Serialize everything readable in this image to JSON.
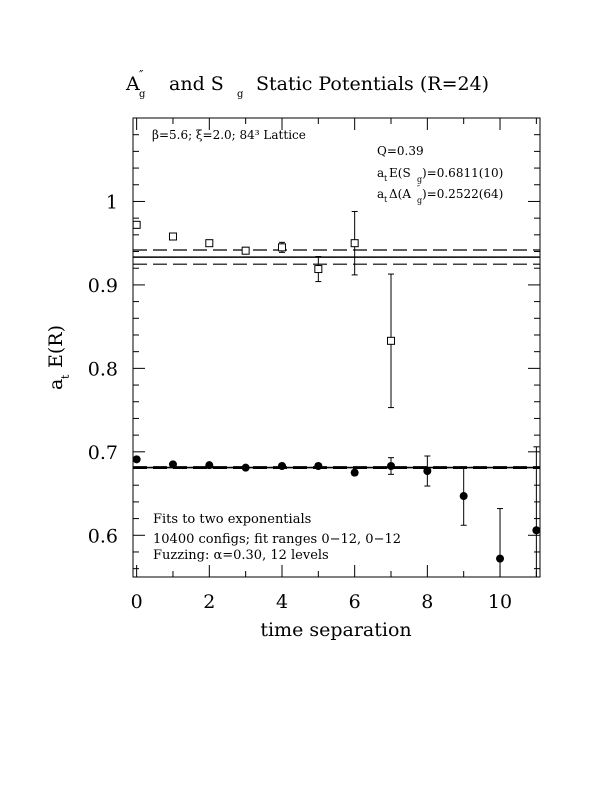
{
  "chart_data": {
    "type": "scatter",
    "title": {
      "main": "A",
      "main_sup": "″",
      "main_sub": "g",
      "middle": "and S",
      "middle_sub": "g",
      "rest": "Static Potentials (R=24)"
    },
    "xlabel": "time separation",
    "ylabel": {
      "base": "a",
      "sub": "t",
      "rest": "E(R)"
    },
    "xlim": [
      -0.1,
      11.1
    ],
    "ylim": [
      0.55,
      1.1
    ],
    "xticks": [
      0,
      2,
      4,
      6,
      8,
      10
    ],
    "yticks": [
      0.6,
      0.7,
      0.8,
      0.9,
      1
    ],
    "ytick_labels": [
      "0.6",
      "0.7",
      "0.8",
      "0.9",
      "1"
    ],
    "lattice_note": "β=5.6; ξ=2.0; 84³ Lattice",
    "fit_stats": {
      "q": "Q=0.39",
      "es": {
        "a": "a",
        "t": "t",
        "mid": "E(S",
        "sub": "g",
        "end": ")=0.6811(10)"
      },
      "da": {
        "a": "a",
        "t": "t",
        "mid": "Δ(A",
        "sup": "″",
        "sub": "g",
        "end": " )=0.2522(64)"
      }
    },
    "fit_note": [
      "Fits to two exponentials",
      "10400 configs; fit ranges 0−12, 0−12",
      "Fuzzing: α=0.30, 12 levels"
    ],
    "series": [
      {
        "name": "S_g",
        "marker": "filled-circle",
        "x": [
          0,
          1,
          2,
          3,
          4,
          5,
          6,
          7,
          8,
          9,
          10,
          11
        ],
        "y": [
          0.691,
          0.685,
          0.684,
          0.681,
          0.683,
          0.683,
          0.675,
          0.683,
          0.677,
          0.647,
          0.572,
          0.606
        ],
        "err": [
          0.002,
          0.002,
          0.002,
          0.002,
          0.002,
          0.003,
          0.003,
          0.01,
          0.018,
          0.035,
          0.06,
          0.1
        ]
      },
      {
        "name": "A_g''",
        "marker": "open-square",
        "x": [
          0,
          1,
          2,
          3,
          4,
          5,
          6,
          7
        ],
        "y": [
          0.972,
          0.958,
          0.95,
          0.941,
          0.945,
          0.919,
          0.95,
          0.833
        ],
        "err": [
          0.004,
          0.003,
          0.003,
          0.004,
          0.006,
          0.015,
          0.038,
          0.08
        ]
      }
    ],
    "fit_lines": [
      {
        "series": "S_g",
        "center": 0.6811,
        "band": [
          0.6801,
          0.6821
        ]
      },
      {
        "series": "A_g''",
        "center": 0.9333,
        "band": [
          0.9248,
          0.9418
        ]
      }
    ]
  }
}
